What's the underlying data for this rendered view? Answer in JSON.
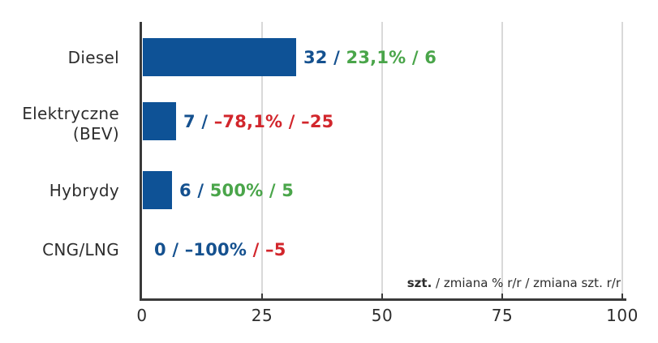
{
  "palette": {
    "bar": "#0e5296",
    "navy": "#15518f",
    "green": "#4aa54a",
    "red": "#d2262c",
    "text": "#2d2d2d",
    "axis": "#3a3a3a",
    "grid": "#d9d9d9",
    "background": "#ffffff"
  },
  "chart_data": {
    "type": "bar",
    "orientation": "horizontal",
    "title": "",
    "xlim": [
      0,
      100
    ],
    "x_ticks": [
      0,
      25,
      50,
      75,
      100
    ],
    "x_tick_labels": [
      "0",
      "25",
      "50",
      "75",
      "100"
    ],
    "grid": "vertical-gridlines-on",
    "legend_position": "bottom-right-above-axis",
    "unit_note": {
      "bold": "szt.",
      "rest": " / zmiana % r/r / zmiana szt. r/r"
    },
    "categories": [
      "Diesel",
      "Elektryczne (BEV)",
      "Hybrydy",
      "CNG/LNG"
    ],
    "values": [
      32,
      7,
      6,
      0
    ],
    "rows": [
      {
        "category_lines": [
          "Diesel"
        ],
        "value": 32,
        "change_pct": "23,1%",
        "change_abs": "6",
        "segments": [
          {
            "text": "32 / ",
            "color": "navy",
            "bold": true
          },
          {
            "text": "23,1% / 6",
            "color": "green",
            "bold": false
          }
        ]
      },
      {
        "category_lines": [
          "Elektryczne",
          "(BEV)"
        ],
        "value": 7,
        "change_pct": "–78,1%",
        "change_abs": "–25",
        "segments": [
          {
            "text": "7 / ",
            "color": "navy",
            "bold": true
          },
          {
            "text": "–78,1% / –25",
            "color": "red",
            "bold": false
          }
        ]
      },
      {
        "category_lines": [
          "Hybrydy"
        ],
        "value": 6,
        "change_pct": "500%",
        "change_abs": "5",
        "segments": [
          {
            "text": "6 / ",
            "color": "navy",
            "bold": true
          },
          {
            "text": "500% / 5",
            "color": "green",
            "bold": false
          }
        ]
      },
      {
        "category_lines": [
          "CNG/LNG"
        ],
        "value": 0,
        "change_pct": "–100%",
        "change_abs": "–5",
        "segments": [
          {
            "text": "0 / ",
            "color": "navy",
            "bold": true
          },
          {
            "text": "–100%",
            "color": "navy",
            "bold": false
          },
          {
            "text": " / –5",
            "color": "red",
            "bold": false
          }
        ]
      }
    ]
  }
}
